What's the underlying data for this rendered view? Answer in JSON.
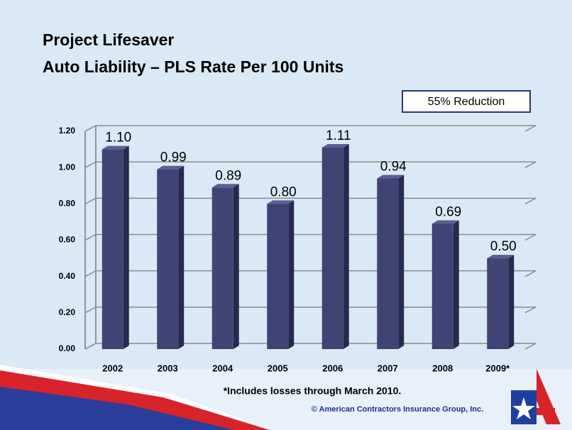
{
  "chart_data": {
    "type": "bar",
    "title": "Project Lifesaver",
    "subtitle": "Auto Liability – PLS Rate Per 100 Units",
    "annotation": "55% Reduction",
    "footnote": "*Includes losses through March 2010.",
    "copyright": "© American Contractors Insurance Group, Inc.",
    "categories": [
      "2002",
      "2003",
      "2004",
      "2005",
      "2006",
      "2007",
      "2008",
      "2009*"
    ],
    "values": [
      1.1,
      0.99,
      0.89,
      0.8,
      1.11,
      0.94,
      0.69,
      0.5
    ],
    "value_labels": [
      "1.10",
      "0.99",
      "0.89",
      "0.80",
      "1.11",
      "0.94",
      "0.69",
      "0.50"
    ],
    "color": "#3f4474",
    "ylim": [
      0,
      1.2
    ],
    "yticks": [
      {
        "value": 0,
        "label": "0.00"
      },
      {
        "value": 0.2,
        "label": "0.20"
      },
      {
        "value": 0.4,
        "label": "0.40"
      },
      {
        "value": 0.6,
        "label": "0.60"
      },
      {
        "value": 0.8,
        "label": "0.80"
      },
      {
        "value": 1.0,
        "label": "1.00"
      },
      {
        "value": 1.2,
        "label": "1.20"
      }
    ],
    "grid": true
  }
}
